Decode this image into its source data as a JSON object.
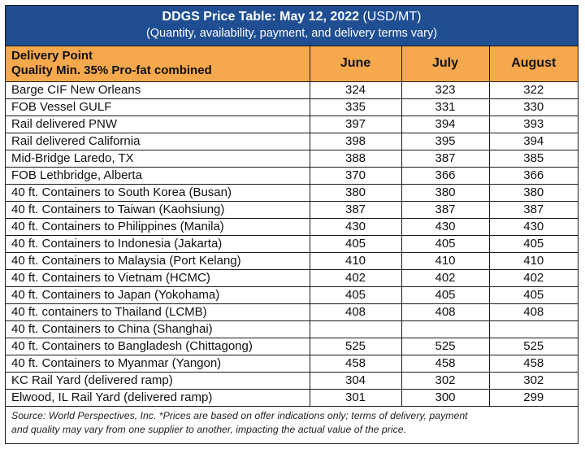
{
  "title": {
    "bold": "DDGS Price Table: May 12, 2022",
    "unit": " (USD/MT)",
    "subtitle": "(Quantity, availability, payment, and delivery terms vary)"
  },
  "header": {
    "col0_line1": "Delivery Point",
    "col0_line2": "Quality Min. 35% Pro-fat combined",
    "months": [
      "June",
      "July",
      "August"
    ]
  },
  "rows": [
    {
      "label": "Barge CIF New Orleans",
      "june": "324",
      "july": "323",
      "august": "322"
    },
    {
      "label": "FOB Vessel GULF",
      "june": "335",
      "july": "331",
      "august": "330"
    },
    {
      "label": "Rail delivered PNW",
      "june": "397",
      "july": "394",
      "august": "393"
    },
    {
      "label": "Rail delivered California",
      "june": "398",
      "july": "395",
      "august": "394"
    },
    {
      "label": "Mid-Bridge Laredo, TX",
      "june": "388",
      "july": "387",
      "august": "385"
    },
    {
      "label": "FOB Lethbridge, Alberta",
      "june": "370",
      "july": "366",
      "august": "366"
    },
    {
      "label": "40 ft. Containers to South Korea (Busan)",
      "june": "380",
      "july": "380",
      "august": "380"
    },
    {
      "label": "40 ft. Containers to Taiwan (Kaohsiung)",
      "june": "387",
      "july": "387",
      "august": "387"
    },
    {
      "label": "40 ft. Containers to Philippines (Manila)",
      "june": "430",
      "july": "430",
      "august": "430"
    },
    {
      "label": "40 ft. Containers to Indonesia (Jakarta)",
      "june": "405",
      "july": "405",
      "august": "405"
    },
    {
      "label": "40 ft. Containers to Malaysia (Port Kelang)",
      "june": "410",
      "july": "410",
      "august": "410"
    },
    {
      "label": "40 ft. Containers to Vietnam (HCMC)",
      "june": "402",
      "july": "402",
      "august": "402"
    },
    {
      "label": "40 ft. Containers to Japan (Yokohama)",
      "june": "405",
      "july": "405",
      "august": "405"
    },
    {
      "label": "40 ft. containers to Thailand (LCMB)",
      "june": "408",
      "july": "408",
      "august": "408"
    },
    {
      "label": "40 ft. Containers to China (Shanghai)",
      "june": "",
      "july": "",
      "august": ""
    },
    {
      "label": "40 ft. Containers to Bangladesh (Chittagong)",
      "june": "525",
      "july": "525",
      "august": "525"
    },
    {
      "label": "40 ft. Containers to Myanmar (Yangon)",
      "june": "458",
      "july": "458",
      "august": "458"
    },
    {
      "label": "KC Rail Yard (delivered ramp)",
      "june": "304",
      "july": "302",
      "august": "302"
    },
    {
      "label": "Elwood, IL Rail Yard (delivered ramp)",
      "june": "301",
      "july": "300",
      "august": "299"
    }
  ],
  "footer": {
    "line1": "Source: World Perspectives, Inc. *Prices are based on offer indications only; terms of delivery, payment",
    "line2": "and quality may vary from one supplier to another, impacting the actual value of the price."
  },
  "colors": {
    "title_bg": "#1f4e93",
    "header_bg": "#f5a84c"
  }
}
